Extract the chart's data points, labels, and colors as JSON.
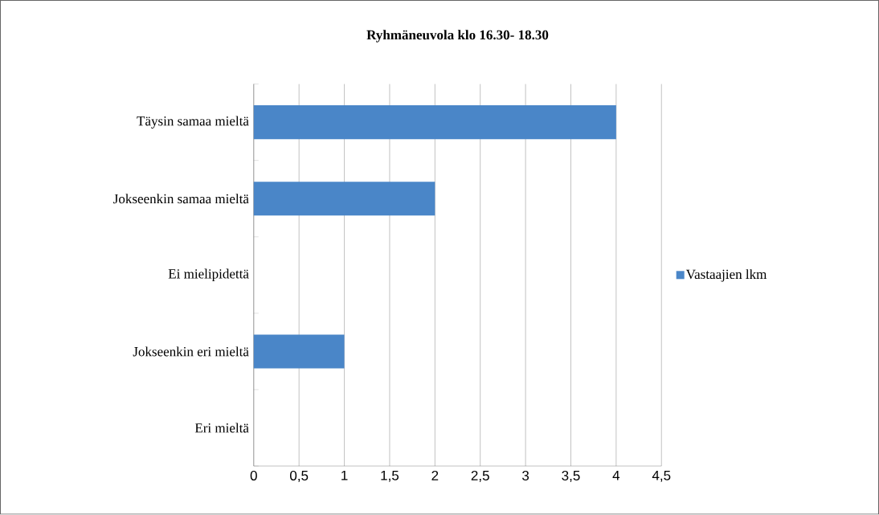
{
  "chart_data": {
    "type": "bar",
    "orientation": "horizontal",
    "title": "Ryhmäneuvola klo 16.30- 18.30",
    "categories": [
      "Täysin samaa mieltä",
      "Jokseenkin samaa mieltä",
      "Ei mielipidettä",
      "Jokseenkin eri mieltä",
      "Eri mieltä"
    ],
    "series": [
      {
        "name": "Vastaajien lkm",
        "color": "#4a86c8",
        "values": [
          4,
          2,
          0,
          1,
          0
        ]
      }
    ],
    "xlim": [
      0,
      4.5
    ],
    "xticks": [
      0,
      {
        "value": 0.5,
        "label": "0,5"
      },
      1,
      {
        "value": 1.5,
        "label": "1,5"
      },
      2,
      {
        "value": 2.5,
        "label": "2,5"
      },
      3,
      {
        "value": 3.5,
        "label": "3,5"
      },
      4,
      {
        "value": 4.5,
        "label": "4,5"
      }
    ],
    "grid": "x",
    "legend": "right"
  }
}
